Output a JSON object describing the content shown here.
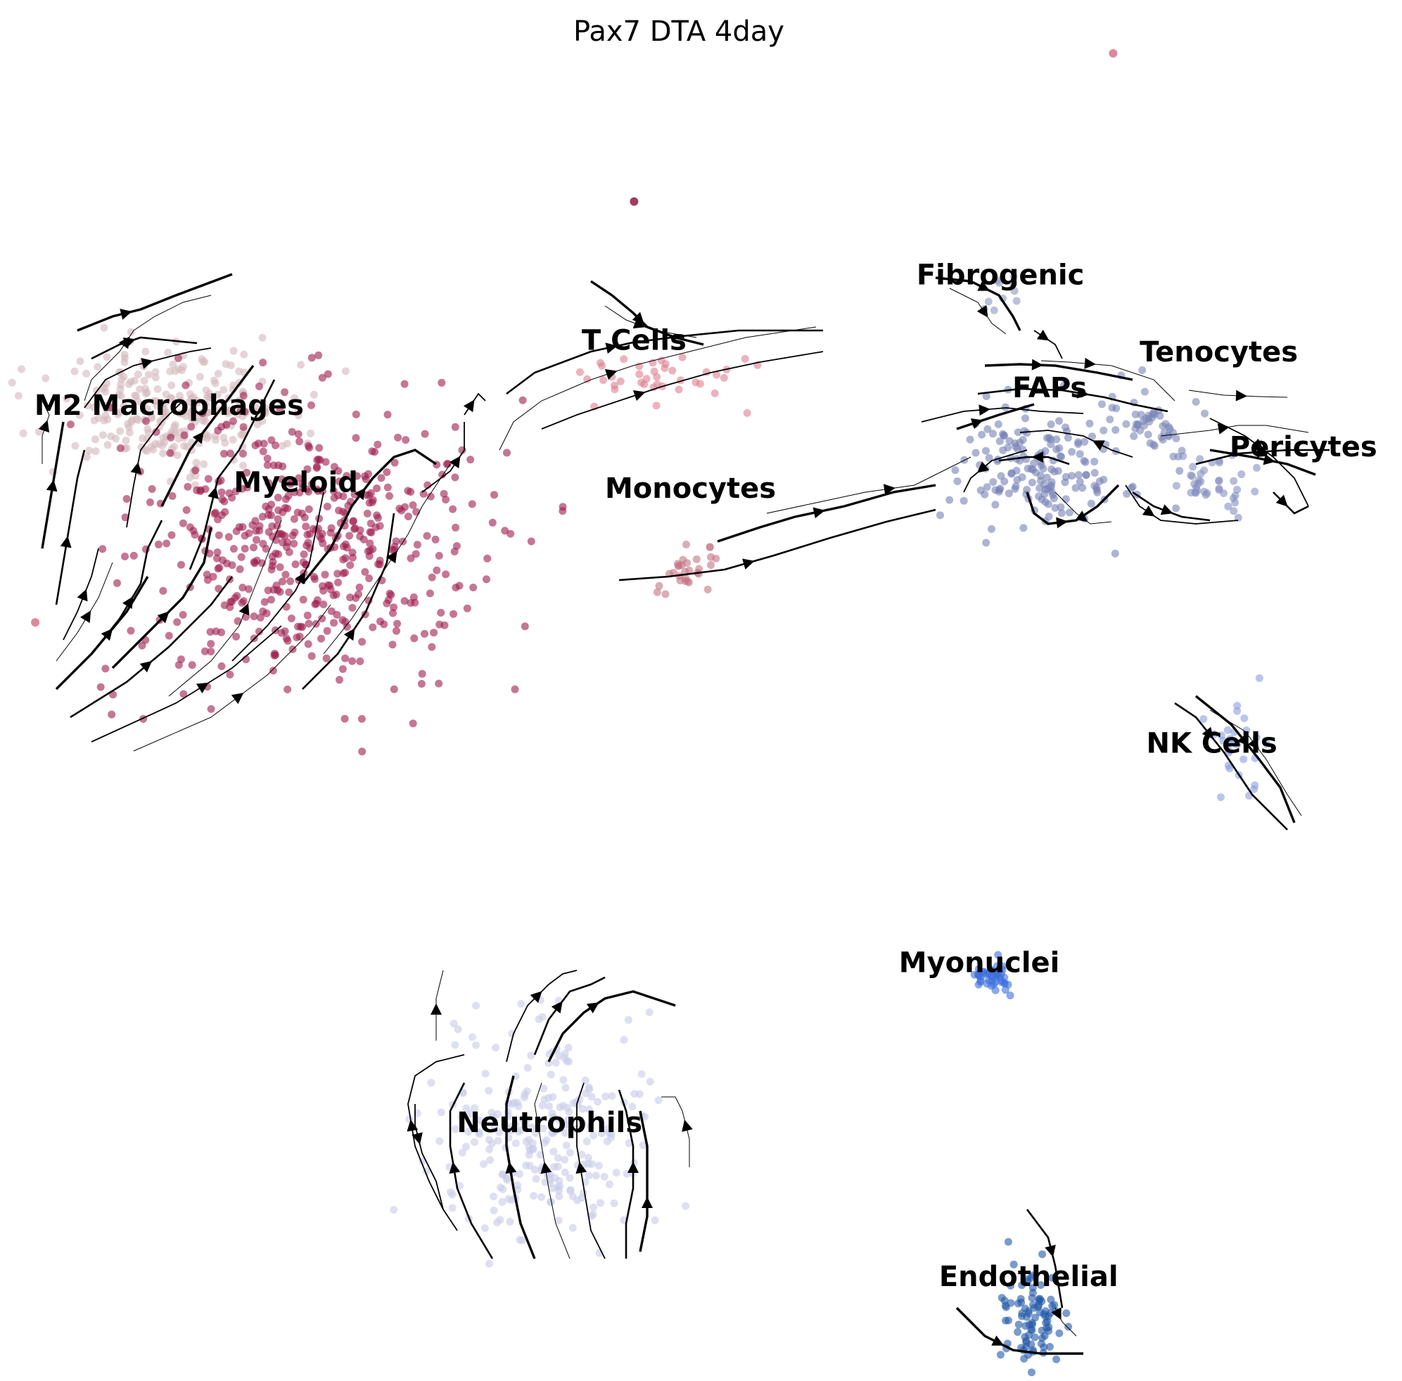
{
  "chart_data": {
    "type": "scatter",
    "title": "Pax7 DTA 4day",
    "xlabel": "",
    "ylabel": "",
    "grid": false,
    "axes_visible": false,
    "legend": "none",
    "clusters": [
      {
        "name": "M2 Macrophages",
        "color": "#d4b8bd",
        "center": [
          2.4,
          12.9
        ],
        "spread": [
          1.55,
          0.9
        ],
        "n": 260
      },
      {
        "name": "Myeloid",
        "color": "#9e1a4c",
        "center": [
          4.3,
          10.6
        ],
        "spread": [
          2.3,
          2.2
        ],
        "n": 520
      },
      {
        "name": "T Cells",
        "color": "#e07f93",
        "center": [
          9.2,
          13.4
        ],
        "spread": [
          1.1,
          0.45
        ],
        "n": 40
      },
      {
        "name": "Monocytes",
        "color": "#c47585",
        "center": [
          9.8,
          10.2
        ],
        "spread": [
          0.35,
          0.6
        ],
        "n": 30
      },
      {
        "name": "Fibrogenic",
        "color": "#8d97c2",
        "center": [
          14.1,
          14.8
        ],
        "spread": [
          0.35,
          0.3
        ],
        "n": 10
      },
      {
        "name": "Tenocytes",
        "color": "#7c86b8",
        "center": [
          16.3,
          12.7
        ],
        "spread": [
          0.7,
          0.5
        ],
        "n": 50
      },
      {
        "name": "FAPs",
        "color": "#7680b4",
        "center": [
          14.8,
          11.9
        ],
        "spread": [
          1.1,
          0.9
        ],
        "n": 170
      },
      {
        "name": "Pericytes",
        "color": "#8690c0",
        "center": [
          17.2,
          11.6
        ],
        "spread": [
          0.55,
          0.45
        ],
        "n": 40
      },
      {
        "name": "NK Cells",
        "color": "#8c9ee0",
        "center": [
          17.6,
          7.2
        ],
        "spread": [
          0.3,
          0.8
        ],
        "n": 30
      },
      {
        "name": "Myonuclei",
        "color": "#3e6fdc",
        "center": [
          14.1,
          3.3
        ],
        "spread": [
          0.25,
          0.25
        ],
        "n": 45
      },
      {
        "name": "Neutrophils",
        "color": "#c8cce8",
        "center": [
          7.7,
          0.6
        ],
        "spread": [
          1.4,
          1.7
        ],
        "n": 260
      },
      {
        "name": "Endothelial",
        "color": "#2158a8",
        "center": [
          14.7,
          -2.5
        ],
        "spread": [
          0.45,
          0.75
        ],
        "n": 90
      }
    ],
    "labels": [
      {
        "text": "M2 Macrophages",
        "x": 2.4,
        "y": 12.8
      },
      {
        "text": "Myeloid",
        "x": 4.2,
        "y": 11.5
      },
      {
        "text": "T Cells",
        "x": 9.0,
        "y": 13.9
      },
      {
        "text": "Monocytes",
        "x": 9.8,
        "y": 11.4
      },
      {
        "text": "Fibrogenic",
        "x": 14.2,
        "y": 15.0
      },
      {
        "text": "Tenocytes",
        "x": 17.3,
        "y": 13.7
      },
      {
        "text": "FAPs",
        "x": 14.9,
        "y": 13.1
      },
      {
        "text": "Pericytes",
        "x": 18.5,
        "y": 12.1
      },
      {
        "text": "NK Cells",
        "x": 17.2,
        "y": 7.1
      },
      {
        "text": "Myonuclei",
        "x": 13.9,
        "y": 3.4
      },
      {
        "text": "Neutrophils",
        "x": 7.8,
        "y": 0.7
      },
      {
        "text": "Endothelial",
        "x": 14.6,
        "y": -1.9
      }
    ],
    "outliers": [
      {
        "x": 15.8,
        "y": 18.9,
        "color": "#d46a82"
      },
      {
        "x": 0.5,
        "y": 9.3,
        "color": "#d46a82"
      },
      {
        "x": 9.0,
        "y": 16.4,
        "color": "#8b0a3c"
      }
    ],
    "xlim": [
      0,
      19.9
    ],
    "ylim": [
      -3.5,
      19.8
    ]
  }
}
